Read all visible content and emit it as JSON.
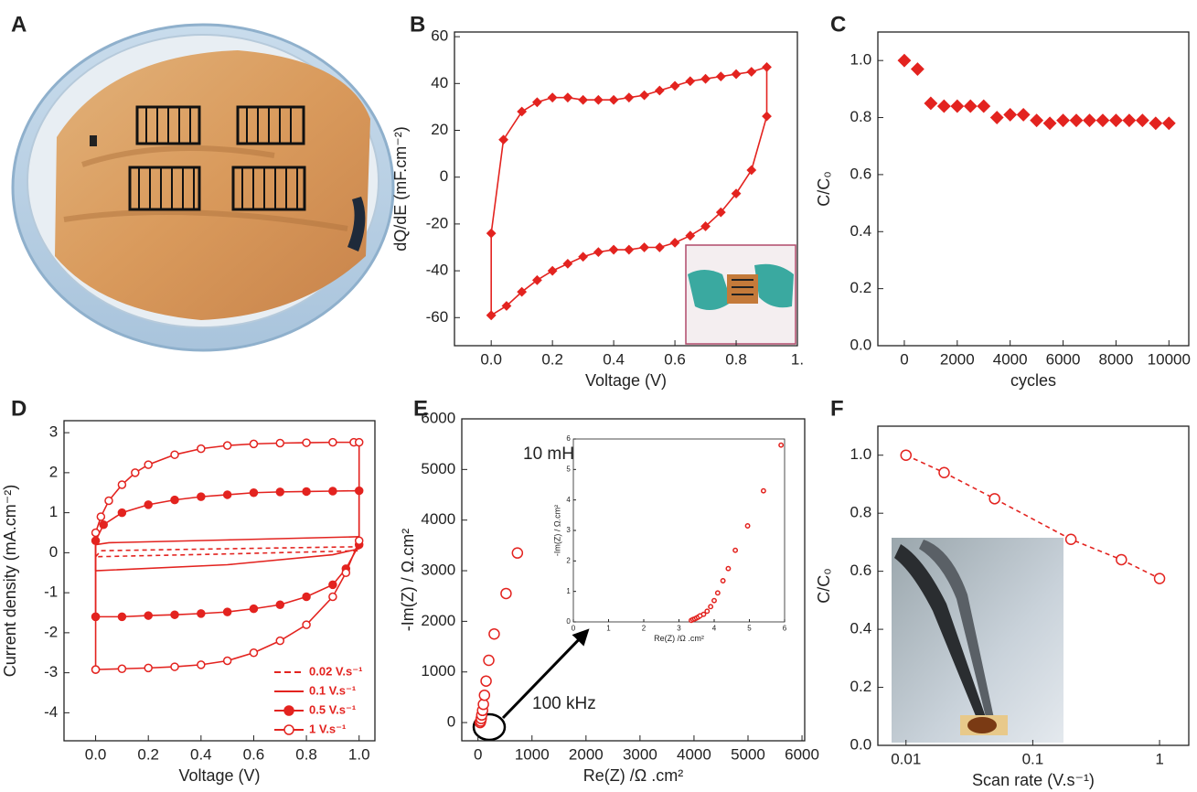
{
  "photo_panel": {
    "label": "A"
  },
  "chart_data": [
    {
      "type": "line",
      "panel": "B",
      "xlabel": "Voltage (V)",
      "ylabel": "dQ/dE (mF.cm⁻²)",
      "xlim": [
        -0.12,
        1.0
      ],
      "ylim": [
        -72,
        62
      ],
      "xticks": [
        {
          "value": 0,
          "label": "0.0"
        },
        0.2,
        0.4,
        0.6,
        0.8,
        {
          "value": 1.0,
          "label": "1."
        }
      ],
      "yticks": [
        -60,
        -40,
        -20,
        0,
        20,
        40,
        60
      ],
      "series": [
        {
          "color": "#e3231f",
          "marker": "diamond",
          "line_style": "solid",
          "x": [
            0,
            0,
            0.04,
            0.1,
            0.15,
            0.2,
            0.25,
            0.3,
            0.35,
            0.4,
            0.45,
            0.5,
            0.55,
            0.6,
            0.65,
            0.7,
            0.75,
            0.8,
            0.85,
            0.9,
            0.9,
            0.85,
            0.8,
            0.75,
            0.7,
            0.65,
            0.6,
            0.55,
            0.5,
            0.45,
            0.4,
            0.35,
            0.3,
            0.25,
            0.2,
            0.15,
            0.1,
            0.05,
            0
          ],
          "values": [
            -59,
            -24,
            16,
            28,
            32,
            34,
            34,
            33,
            33,
            33,
            34,
            35,
            37,
            39,
            41,
            42,
            43,
            44,
            45,
            47,
            26,
            3,
            -7,
            -15,
            -21,
            -25,
            -28,
            -30,
            -30,
            -31,
            -31,
            -32,
            -34,
            -37,
            -40,
            -44,
            -49,
            -55,
            -59
          ]
        }
      ]
    },
    {
      "type": "scatter",
      "panel": "C",
      "xlabel": "cycles",
      "ylabel": "C/C₀",
      "xlim": [
        -1000,
        10750
      ],
      "ylim": [
        0,
        1.1
      ],
      "xticks": [
        0,
        2000,
        4000,
        6000,
        8000,
        10000
      ],
      "yticks": [
        {
          "value": 0,
          "label": "0.0"
        },
        0.2,
        0.4,
        0.6,
        0.8,
        {
          "value": 1,
          "label": "1.0"
        }
      ],
      "series": [
        {
          "color": "#e3231f",
          "marker": "diamond",
          "line_style": "none",
          "x": [
            0,
            500,
            1000,
            1500,
            2000,
            2500,
            3000,
            3500,
            4000,
            4500,
            5000,
            5500,
            6000,
            6500,
            7000,
            7500,
            8000,
            8500,
            9000,
            9500,
            10000
          ],
          "values": [
            1.0,
            0.97,
            0.85,
            0.84,
            0.84,
            0.84,
            0.84,
            0.8,
            0.81,
            0.81,
            0.79,
            0.78,
            0.79,
            0.79,
            0.79,
            0.79,
            0.79,
            0.79,
            0.79,
            0.78,
            0.78
          ]
        }
      ]
    },
    {
      "type": "line",
      "panel": "D",
      "xlabel": "Voltage (V)",
      "ylabel": "Current density (mA.cm⁻²)",
      "xlim": [
        -0.12,
        1.06
      ],
      "ylim": [
        -4.7,
        3.3
      ],
      "xticks": [
        {
          "value": 0,
          "label": "0.0"
        },
        0.2,
        0.4,
        0.6,
        0.8,
        {
          "value": 1,
          "label": "1.0"
        }
      ],
      "yticks": [
        -4,
        -3,
        -2,
        -1,
        0,
        1,
        2,
        3
      ],
      "legend": "lower right",
      "series": [
        {
          "name": "0.02 V.s⁻¹",
          "color": "#e3231f",
          "marker": "none",
          "line_style": "dashed",
          "x": [
            0,
            0.02,
            0.5,
            1.0,
            1.0,
            0.5,
            0
          ],
          "values": [
            -0.1,
            0.05,
            0.1,
            0.15,
            0.05,
            -0.03,
            -0.1
          ]
        },
        {
          "name": "0.1 V.s⁻¹",
          "color": "#e3231f",
          "marker": "none",
          "line_style": "solid",
          "x": [
            0,
            0,
            0.05,
            0.5,
            1.0,
            1.0,
            0.9,
            0.5,
            0
          ],
          "values": [
            -0.45,
            0.2,
            0.25,
            0.32,
            0.4,
            0.1,
            -0.05,
            -0.3,
            -0.45
          ]
        },
        {
          "name": "0.5 V.s⁻¹",
          "color": "#e3231f",
          "marker": "circle-filled",
          "line_style": "solid",
          "x": [
            0,
            0,
            0.03,
            0.1,
            0.2,
            0.3,
            0.4,
            0.5,
            0.6,
            0.7,
            0.8,
            0.9,
            1.0,
            1.0,
            0.95,
            0.9,
            0.8,
            0.7,
            0.6,
            0.5,
            0.4,
            0.3,
            0.2,
            0.1,
            0
          ],
          "values": [
            -1.6,
            0.3,
            0.7,
            1.0,
            1.2,
            1.32,
            1.4,
            1.45,
            1.5,
            1.52,
            1.53,
            1.54,
            1.55,
            0.2,
            -0.4,
            -0.8,
            -1.1,
            -1.3,
            -1.4,
            -1.48,
            -1.52,
            -1.55,
            -1.57,
            -1.6,
            -1.6
          ]
        },
        {
          "name": "1 V.s⁻¹",
          "color": "#e3231f",
          "marker": "circle-open",
          "line_style": "solid",
          "x": [
            0,
            0,
            0.02,
            0.05,
            0.1,
            0.15,
            0.2,
            0.3,
            0.4,
            0.5,
            0.6,
            0.7,
            0.8,
            0.9,
            0.98,
            1.0,
            1.0,
            0.95,
            0.9,
            0.8,
            0.7,
            0.6,
            0.5,
            0.4,
            0.3,
            0.2,
            0.1,
            0
          ],
          "values": [
            -2.92,
            0.5,
            0.9,
            1.3,
            1.7,
            2.0,
            2.2,
            2.45,
            2.6,
            2.68,
            2.72,
            2.74,
            2.75,
            2.76,
            2.76,
            2.76,
            0.3,
            -0.5,
            -1.1,
            -1.8,
            -2.2,
            -2.5,
            -2.7,
            -2.8,
            -2.85,
            -2.88,
            -2.9,
            -2.92
          ]
        }
      ]
    },
    {
      "type": "scatter",
      "panel": "E",
      "xlabel": "Re(Z) /Ω .cm²",
      "ylabel": "-Im(Z) / Ω.cm²",
      "xlim": [
        -300,
        6050
      ],
      "ylim": [
        -360,
        6000
      ],
      "xticks": [
        0,
        1000,
        2000,
        3000,
        4000,
        5000,
        6000
      ],
      "yticks": [
        0,
        1000,
        2000,
        3000,
        4000,
        5000,
        6000
      ],
      "annotations": [
        "10 mHz",
        "100 kHz"
      ],
      "series": [
        {
          "color": "#e3231f",
          "marker": "circle-open",
          "line_style": "none",
          "x": [
            40,
            50,
            60,
            70,
            85,
            100,
            120,
            150,
            200,
            300,
            520,
            730
          ],
          "values": [
            0,
            30,
            80,
            150,
            240,
            360,
            540,
            820,
            1230,
            1750,
            2550,
            3350
          ]
        }
      ],
      "inset": {
        "type": "scatter",
        "xlabel": "Re(Z) /Ω .cm²",
        "ylabel": "-Im(Z) / Ω.cm²",
        "xlim": [
          0,
          6
        ],
        "ylim": [
          0,
          6
        ],
        "xticks": [
          0,
          1,
          2,
          3,
          4,
          5,
          6
        ],
        "yticks": [
          0,
          1,
          2,
          3,
          4,
          5,
          6
        ],
        "series": [
          {
            "color": "#e3231f",
            "marker": "circle-open",
            "line_style": "none",
            "x": [
              3.35,
              3.4,
              3.45,
              3.5,
              3.55,
              3.6,
              3.7,
              3.8,
              3.9,
              4.0,
              4.1,
              4.25,
              4.4,
              4.6,
              4.95,
              5.4,
              5.9
            ],
            "values": [
              0.05,
              0.08,
              0.1,
              0.13,
              0.16,
              0.2,
              0.25,
              0.35,
              0.5,
              0.7,
              0.95,
              1.35,
              1.75,
              2.35,
              3.15,
              4.3,
              5.8
            ]
          }
        ]
      }
    },
    {
      "type": "scatter",
      "panel": "F",
      "xlabel": "Scan rate (V.s⁻¹)",
      "ylabel": "C/C₀",
      "xlog": true,
      "xlim": [
        0.006,
        1.7
      ],
      "ylim": [
        0,
        1.1
      ],
      "xticks": [
        0.01,
        0.1,
        1
      ],
      "yticks": [
        {
          "value": 0,
          "label": "0.0"
        },
        0.2,
        0.4,
        0.6,
        0.8,
        {
          "value": 1,
          "label": "1.0"
        }
      ],
      "series": [
        {
          "color": "#e3231f",
          "marker": "circle-open",
          "line_style": "dashed",
          "x": [
            0.01,
            0.02,
            0.05,
            0.2,
            0.5,
            1
          ],
          "values": [
            1.0,
            0.94,
            0.85,
            0.71,
            0.64,
            0.575
          ]
        }
      ]
    }
  ]
}
